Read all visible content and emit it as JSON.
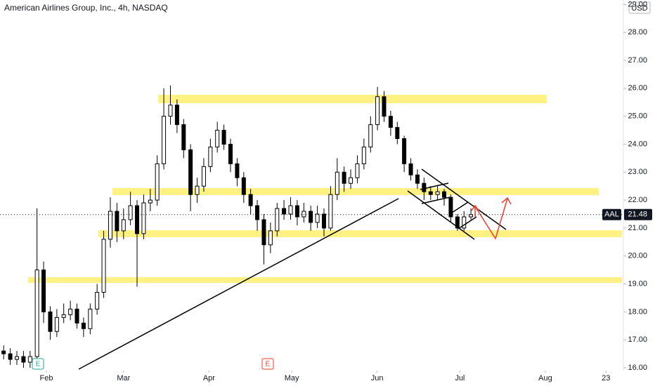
{
  "chart_data": {
    "type": "candlestick",
    "title": "American Airlines Group, Inc., 4h, NASDAQ",
    "currency": "USD",
    "symbol": "AAL",
    "events": [
      "E",
      "E"
    ],
    "x": [
      16.5,
      18.9,
      21.3,
      23.7,
      26.1,
      28.6,
      31.0,
      33.4,
      35.8,
      38.3,
      40.7,
      43.1,
      45.5,
      47.9,
      50.4,
      52.8,
      55.2,
      57.6,
      60.0,
      62.5,
      64.9,
      67.3,
      69.7,
      72.2,
      74.6,
      77.0,
      79.4,
      81.8,
      84.3,
      86.7,
      89.1,
      91.5,
      94.0,
      96.4,
      98.8,
      101.2,
      103.6,
      106.1,
      108.5,
      110.9,
      113.3,
      115.7,
      118.2,
      120.6,
      123.0,
      125.4,
      127.9,
      130.3,
      132.7,
      135.1,
      137.5,
      140.0,
      142.4,
      144.8,
      147.2,
      149.6,
      152.1,
      154.5,
      156.9,
      159.3,
      161.8,
      164.2,
      166.6,
      169.0,
      171.4,
      173.9,
      176.3,
      178.7,
      181.1,
      183.5,
      186.0
    ],
    "open": [
      16.6,
      16.5,
      16.3,
      16.4,
      16.2,
      16.4,
      19.5,
      18.0,
      17.3,
      17.8,
      17.9,
      18.1,
      17.6,
      17.4,
      18.1,
      18.7,
      20.6,
      21.6,
      20.9,
      21.3,
      21.8,
      20.8,
      21.9,
      22.0,
      23.3,
      25.0,
      25.4,
      24.7,
      23.8,
      22.2,
      22.5,
      23.2,
      23.9,
      24.5,
      24.0,
      23.3,
      22.8,
      22.2,
      21.8,
      21.3,
      20.4,
      20.9,
      21.7,
      21.5,
      21.8,
      21.4,
      21.6,
      21.2,
      21.5,
      21.0,
      22.2,
      23.0,
      22.6,
      22.8,
      23.3,
      23.9,
      24.7,
      25.7,
      25.0,
      24.6,
      24.2,
      23.3,
      22.9,
      22.6,
      22.3,
      22.2,
      22.3,
      22.1,
      21.4,
      21.0,
      21.4
    ],
    "high": [
      16.8,
      16.7,
      16.6,
      16.6,
      16.6,
      21.7,
      19.8,
      18.2,
      18.1,
      18.3,
      18.4,
      18.3,
      17.8,
      18.3,
      19.0,
      20.9,
      22.1,
      21.9,
      21.7,
      22.3,
      22.0,
      22.2,
      22.4,
      23.6,
      26.0,
      26.1,
      25.6,
      24.9,
      24.0,
      22.8,
      23.5,
      24.2,
      24.8,
      24.7,
      24.2,
      23.5,
      23.0,
      22.4,
      22.0,
      21.5,
      21.2,
      21.9,
      22.0,
      22.1,
      22.0,
      21.9,
      21.8,
      21.8,
      21.7,
      22.5,
      23.5,
      23.2,
      23.1,
      23.6,
      24.2,
      25.0,
      26.05,
      25.9,
      25.2,
      24.8,
      24.3,
      23.5,
      23.1,
      22.8,
      22.5,
      22.5,
      22.4,
      22.2,
      21.5,
      21.6,
      21.7
    ],
    "low": [
      16.3,
      16.1,
      16.1,
      16.0,
      16.0,
      16.3,
      17.6,
      17.0,
      17.1,
      17.6,
      17.7,
      17.4,
      17.1,
      17.2,
      17.9,
      18.5,
      20.3,
      20.5,
      20.6,
      21.1,
      18.9,
      20.6,
      21.6,
      21.8,
      23.1,
      24.7,
      24.4,
      23.5,
      21.6,
      21.9,
      22.3,
      23.0,
      23.7,
      23.8,
      23.0,
      22.5,
      21.9,
      21.5,
      20.9,
      19.7,
      20.1,
      20.7,
      21.3,
      21.3,
      21.1,
      21.2,
      20.9,
      21.0,
      20.7,
      20.9,
      22.0,
      22.3,
      22.4,
      22.6,
      23.1,
      23.7,
      24.5,
      24.8,
      24.3,
      24.0,
      23.0,
      22.7,
      22.4,
      22.0,
      22.0,
      22.0,
      21.8,
      21.2,
      20.9,
      20.9,
      21.3
    ],
    "close": [
      16.5,
      16.3,
      16.4,
      16.2,
      16.4,
      19.5,
      18.0,
      17.3,
      17.8,
      17.9,
      18.1,
      17.6,
      17.4,
      18.1,
      18.7,
      20.6,
      21.6,
      20.9,
      21.3,
      21.8,
      20.8,
      21.9,
      22.0,
      23.3,
      25.0,
      25.4,
      24.7,
      23.8,
      22.2,
      22.5,
      23.2,
      23.9,
      24.5,
      24.0,
      23.3,
      22.8,
      22.2,
      21.8,
      21.3,
      20.4,
      20.9,
      21.7,
      21.5,
      21.8,
      21.4,
      21.6,
      21.2,
      21.5,
      21.0,
      22.2,
      23.0,
      22.6,
      22.8,
      23.3,
      23.9,
      24.7,
      25.7,
      25.0,
      24.6,
      24.2,
      23.3,
      22.9,
      22.6,
      22.3,
      22.2,
      22.3,
      22.1,
      21.4,
      21.0,
      21.4,
      21.48
    ],
    "up_color": "#ffffff",
    "down_color": "#000000",
    "ylim": [
      15.9,
      29.16
    ],
    "yticks": [
      {
        "value": 16,
        "label": "16.00"
      },
      {
        "value": 17,
        "label": "17.00"
      },
      {
        "value": 18,
        "label": "18.00"
      },
      {
        "value": 19,
        "label": "19.00"
      },
      {
        "value": 20,
        "label": "20.00"
      },
      {
        "value": 21,
        "label": "21.00"
      },
      {
        "value": 22,
        "label": "22.00"
      },
      {
        "value": 23,
        "label": "23.00"
      },
      {
        "value": 24,
        "label": "24.00"
      },
      {
        "value": 25,
        "label": "25.00"
      },
      {
        "value": 26,
        "label": "26.00"
      },
      {
        "value": 27,
        "label": "27.00"
      },
      {
        "value": 28,
        "label": "28.00"
      },
      {
        "value": 29,
        "label": "29.00"
      }
    ],
    "xlim": [
      15.18,
      240.8
    ],
    "xticks": [
      {
        "value": 32,
        "label": "Feb"
      },
      {
        "value": 60,
        "label": "Mar"
      },
      {
        "value": 91,
        "label": "Apr"
      },
      {
        "value": 121,
        "label": "May"
      },
      {
        "value": 152,
        "label": "Jun"
      },
      {
        "value": 182,
        "label": "Jul"
      },
      {
        "value": 213,
        "label": "Aug"
      },
      {
        "value": 235,
        "label": "23"
      }
    ]
  }
}
